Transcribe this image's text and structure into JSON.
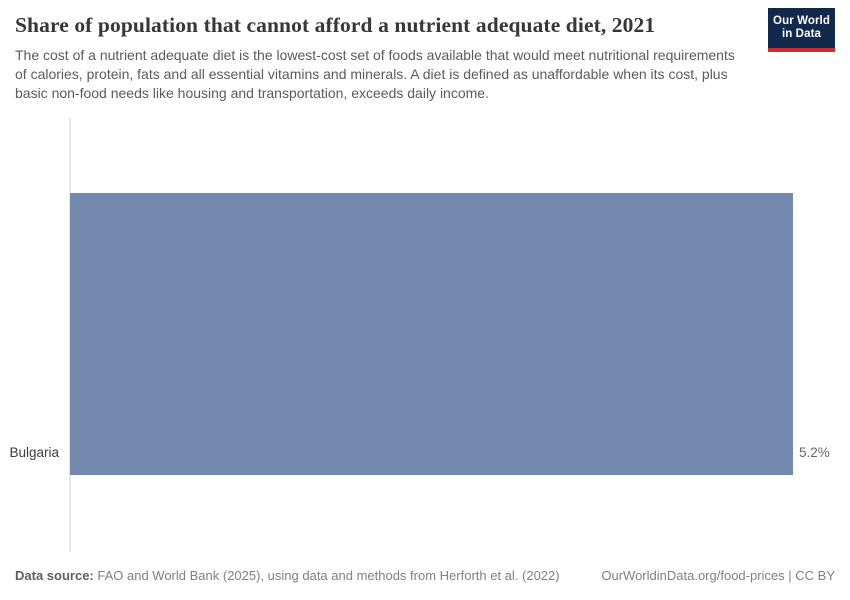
{
  "header": {
    "title": "Share of population that cannot afford a nutrient adequate diet, 2021",
    "subtitle": "The cost of a nutrient adequate diet is the lowest-cost set of foods available that would meet nutritional requirements of calories, protein, fats and all essential vitamins and minerals. A diet is defined as unaffordable when its cost, plus basic non-food needs like housing and transportation, exceeds daily income.",
    "logo": {
      "line1": "Our World",
      "line2": "in Data",
      "bg_color": "#12294b",
      "accent_color": "#cc2d2d"
    }
  },
  "chart_data": {
    "type": "bar",
    "orientation": "horizontal",
    "title": "Share of population that cannot afford a nutrient adequate diet, 2021",
    "categories": [
      "Bulgaria"
    ],
    "values": [
      5.2
    ],
    "value_labels": [
      "5.2%"
    ],
    "unit": "%",
    "xlabel": "",
    "ylabel": "",
    "xlim": [
      0,
      5.2
    ],
    "grid": false,
    "legend": "none",
    "bar_color": "#7389ae",
    "axis_color": "#e6e6e6"
  },
  "footer": {
    "source_label": "Data source:",
    "source_text": "FAO and World Bank (2025), using data and methods from Herforth et al. (2022)",
    "attribution": "OurWorldinData.org/food-prices | CC BY"
  }
}
